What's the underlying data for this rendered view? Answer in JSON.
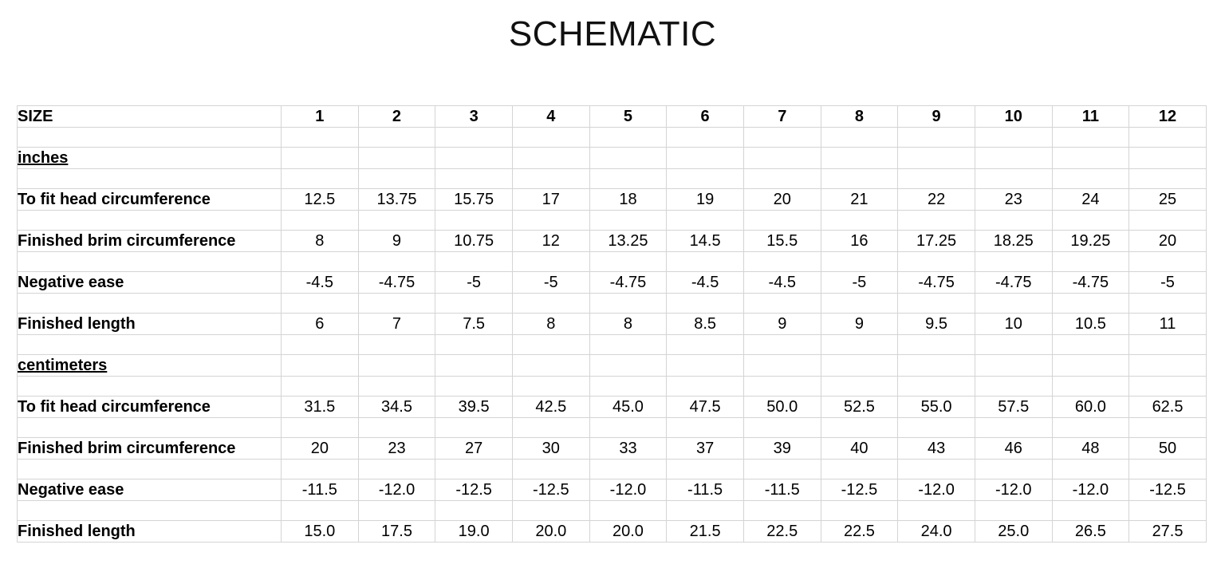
{
  "title": "SCHEMATIC",
  "header": {
    "label": "SIZE",
    "sizes": [
      "1",
      "2",
      "3",
      "4",
      "5",
      "6",
      "7",
      "8",
      "9",
      "10",
      "11",
      "12"
    ]
  },
  "sections": [
    {
      "name": "inches",
      "rows": [
        {
          "label": "To fit head circumference",
          "values": [
            "12.5",
            "13.75",
            "15.75",
            "17",
            "18",
            "19",
            "20",
            "21",
            "22",
            "23",
            "24",
            "25"
          ]
        },
        {
          "label": "Finished brim circumference",
          "values": [
            "8",
            "9",
            "10.75",
            "12",
            "13.25",
            "14.5",
            "15.5",
            "16",
            "17.25",
            "18.25",
            "19.25",
            "20"
          ]
        },
        {
          "label": "Negative ease",
          "values": [
            "-4.5",
            "-4.75",
            "-5",
            "-5",
            "-4.75",
            "-4.5",
            "-4.5",
            "-5",
            "-4.75",
            "-4.75",
            "-4.75",
            "-5"
          ]
        },
        {
          "label": "Finished length",
          "values": [
            "6",
            "7",
            "7.5",
            "8",
            "8",
            "8.5",
            "9",
            "9",
            "9.5",
            "10",
            "10.5",
            "11"
          ]
        }
      ]
    },
    {
      "name": "centimeters",
      "rows": [
        {
          "label": "To fit head circumference",
          "values": [
            "31.5",
            "34.5",
            "39.5",
            "42.5",
            "45.0",
            "47.5",
            "50.0",
            "52.5",
            "55.0",
            "57.5",
            "60.0",
            "62.5"
          ]
        },
        {
          "label": "Finished brim circumference",
          "values": [
            "20",
            "23",
            "27",
            "30",
            "33",
            "37",
            "39",
            "40",
            "43",
            "46",
            "48",
            "50"
          ]
        },
        {
          "label": "Negative ease",
          "values": [
            "-11.5",
            "-12.0",
            "-12.5",
            "-12.5",
            "-12.0",
            "-11.5",
            "-11.5",
            "-12.5",
            "-12.0",
            "-12.0",
            "-12.0",
            "-12.5"
          ]
        },
        {
          "label": "Finished length",
          "values": [
            "15.0",
            "17.5",
            "19.0",
            "20.0",
            "20.0",
            "21.5",
            "22.5",
            "22.5",
            "24.0",
            "25.0",
            "26.5",
            "27.5"
          ]
        }
      ]
    }
  ]
}
